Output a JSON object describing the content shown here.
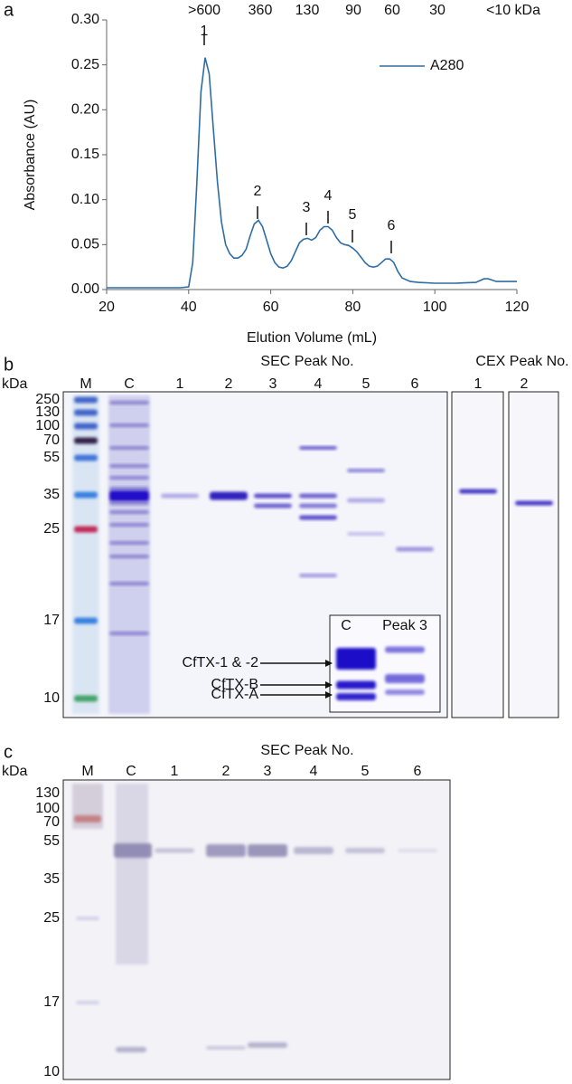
{
  "chart_data": {
    "type": "line",
    "panel_label": "a",
    "top_labels": [
      ">600",
      "360",
      "130",
      "90",
      "60",
      "30",
      "<10 kDa"
    ],
    "ylabel": "Absorbance (AU)",
    "xlabel": "Elution Volume (mL)",
    "peak_labels": [
      "1",
      "2",
      "3",
      "4",
      "5",
      "6"
    ],
    "x": [
      20,
      25,
      30,
      35,
      38,
      40,
      41,
      42,
      43,
      44,
      45,
      46,
      47,
      48,
      49,
      50,
      51,
      52,
      53,
      54,
      55,
      56,
      57,
      58,
      59,
      60,
      61,
      62,
      63,
      64,
      65,
      66,
      67,
      68,
      69,
      70,
      71,
      72,
      73,
      74,
      75,
      76,
      77,
      78,
      79,
      80,
      81,
      82,
      83,
      84,
      85,
      86,
      87,
      88,
      89,
      90,
      91,
      92,
      94,
      96,
      100,
      105,
      110,
      112,
      113,
      115,
      120
    ],
    "series": [
      {
        "name": "A280",
        "color": "#2e6da4",
        "values": [
          0.002,
          0.002,
          0.002,
          0.002,
          0.002,
          0.003,
          0.03,
          0.12,
          0.22,
          0.258,
          0.24,
          0.18,
          0.12,
          0.075,
          0.05,
          0.04,
          0.035,
          0.035,
          0.038,
          0.045,
          0.06,
          0.073,
          0.077,
          0.07,
          0.055,
          0.04,
          0.03,
          0.025,
          0.024,
          0.026,
          0.032,
          0.042,
          0.052,
          0.056,
          0.057,
          0.055,
          0.058,
          0.066,
          0.07,
          0.07,
          0.066,
          0.058,
          0.052,
          0.05,
          0.049,
          0.046,
          0.042,
          0.036,
          0.03,
          0.026,
          0.025,
          0.026,
          0.03,
          0.034,
          0.034,
          0.03,
          0.02,
          0.013,
          0.009,
          0.008,
          0.007,
          0.007,
          0.008,
          0.012,
          0.012,
          0.009,
          0.009
        ]
      }
    ],
    "xlim": [
      20,
      120
    ],
    "xticks": [
      20,
      40,
      60,
      80,
      100,
      120
    ],
    "ylim": [
      0,
      0.3
    ],
    "yticks": [
      {
        "value": 0,
        "label": "0.00"
      },
      {
        "value": 0.05,
        "label": "0.05"
      },
      {
        "value": 0.1,
        "label": "0.10"
      },
      {
        "value": 0.15,
        "label": "0.15"
      },
      {
        "value": 0.2,
        "label": "0.20"
      },
      {
        "value": 0.25,
        "label": "0.25"
      },
      {
        "value": 0.3,
        "label": "0.30"
      }
    ],
    "legend": "upper right"
  },
  "gel_b": {
    "panel_label": "b",
    "sec_title": "SEC Peak No.",
    "cex_title": "CEX Peak No.",
    "unit": "kDa",
    "lanes": [
      "M",
      "C",
      "1",
      "2",
      "3",
      "4",
      "5",
      "6"
    ],
    "cex_lanes": [
      "1",
      "2"
    ],
    "markers": [
      "250",
      "130",
      "100",
      "70",
      "55",
      "35",
      "25",
      "17",
      "10"
    ],
    "inset_lanes": [
      "C",
      "Peak 3"
    ],
    "inset_labels": [
      "CfTX-1 & -2",
      "CfTX-B",
      "CfTX-A"
    ]
  },
  "gel_c": {
    "panel_label": "c",
    "sec_title": "SEC Peak No.",
    "unit": "kDa",
    "lanes": [
      "M",
      "C",
      "1",
      "2",
      "3",
      "4",
      "5",
      "6"
    ],
    "markers": [
      "130",
      "100",
      "70",
      "55",
      "35",
      "25",
      "17",
      "10"
    ]
  }
}
